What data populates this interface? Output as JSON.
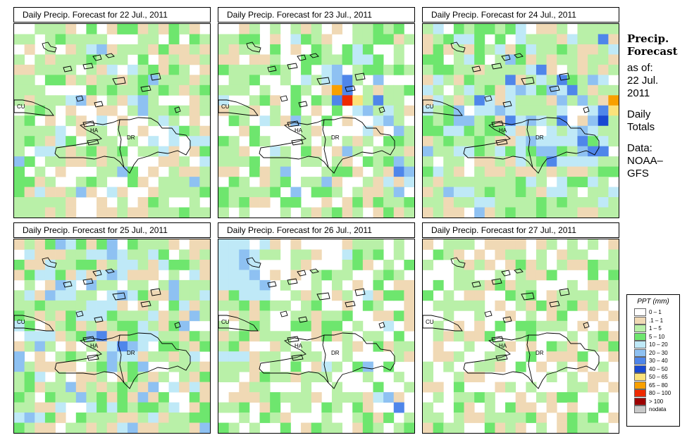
{
  "panels": [
    {
      "title": "Daily Precip. Forecast for  22 Jul., 2011",
      "seed": 11,
      "profile": "p1"
    },
    {
      "title": "Daily Precip. Forecast for  23 Jul., 2011",
      "seed": 23,
      "profile": "p2"
    },
    {
      "title": "Daily Precip. Forecast for  24 Jul., 2011",
      "seed": 37,
      "profile": "p3"
    },
    {
      "title": "Daily Precip. Forecast for  25 Jul., 2011",
      "seed": 41,
      "profile": "p4"
    },
    {
      "title": "Daily Precip. Forecast for  26 Jul., 2011",
      "seed": 53,
      "profile": "p5"
    },
    {
      "title": "Daily Precip. Forecast for  27 Jul., 2011",
      "seed": 67,
      "profile": "p6"
    }
  ],
  "map_labels": {
    "cu": "CU",
    "ha": "HA",
    "dr": "DR"
  },
  "sidebar": {
    "title_line1": "Precip.",
    "title_line2": "Forecast",
    "asof_label": "as of:",
    "date_line1": "22 Jul.",
    "date_line2": "2011",
    "totals_line1": "Daily",
    "totals_line2": "Totals",
    "data_label": "Data:",
    "source_line1": "NOAA–",
    "source_line2": "GFS"
  },
  "legend": {
    "title": "PPT (mm)",
    "items": [
      {
        "label": "0 – 1",
        "color": "#ffffff"
      },
      {
        "label": ".1 – 1",
        "color": "#f0d9b5"
      },
      {
        "label": "1 – 5",
        "color": "#b9f0a8"
      },
      {
        "label": "5 – 10",
        "color": "#6ee66e"
      },
      {
        "label": "10 – 20",
        "color": "#bfe9f7"
      },
      {
        "label": "20 – 30",
        "color": "#8ec1f2"
      },
      {
        "label": "30 – 40",
        "color": "#4f86ea"
      },
      {
        "label": "40 – 50",
        "color": "#1848d2"
      },
      {
        "label": "50 – 65",
        "color": "#fbe27a"
      },
      {
        "label": "65 – 80",
        "color": "#f9a000"
      },
      {
        "label": "80 – 100",
        "color": "#ee2a00"
      },
      {
        "label": "> 100",
        "color": "#9c0000"
      },
      {
        "label": "nodata",
        "color": "#c8c8c8"
      }
    ]
  }
}
